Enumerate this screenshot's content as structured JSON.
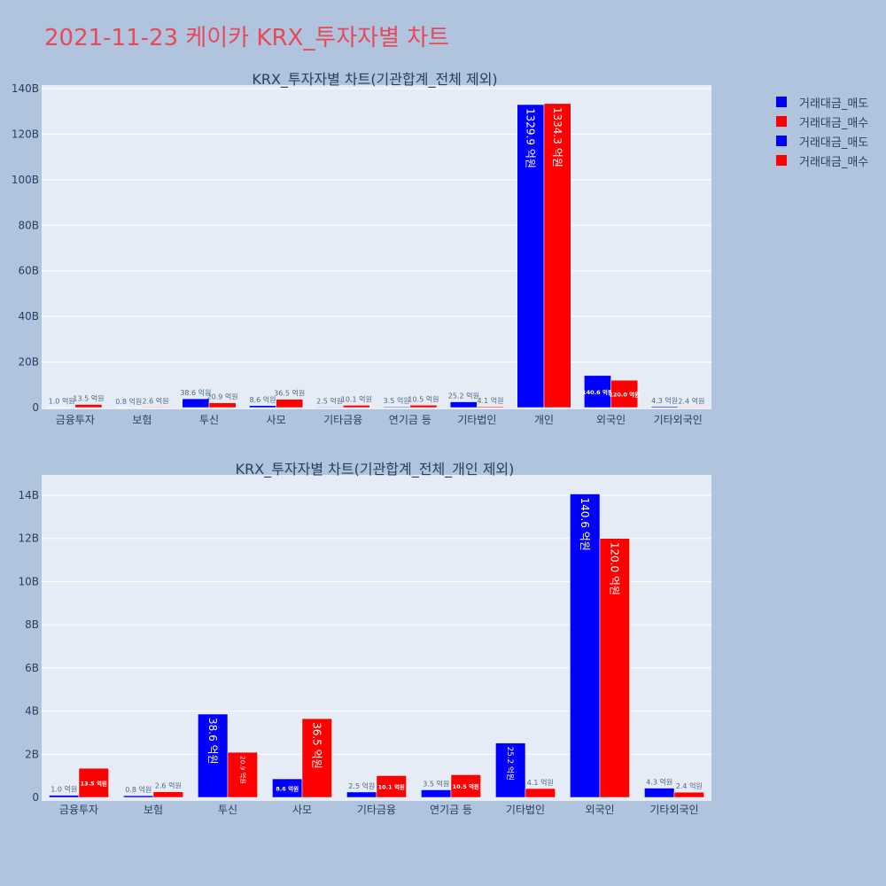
{
  "page": {
    "title": "2021-11-23 케이카 KRX_투자자별 차트"
  },
  "legend": {
    "items": [
      {
        "label": "거래대금_매도",
        "color": "#0000ff"
      },
      {
        "label": "거래대금_매수",
        "color": "#ff0000"
      },
      {
        "label": "거래대금_매도",
        "color": "#0000ff"
      },
      {
        "label": "거래대금_매수",
        "color": "#ff0000"
      }
    ]
  },
  "colors": {
    "sell": "#0000ff",
    "buy": "#ff0000",
    "plot_bg": "#e5ecf6",
    "page_bg": "#b0c4de",
    "grid": "#ffffff",
    "text": "#2a3f5f"
  },
  "chart_data": [
    {
      "type": "bar",
      "title": "KRX_투자자별 차트(기관합계_전체 제외)",
      "categories": [
        "금융투자",
        "보험",
        "투신",
        "사모",
        "기타금융",
        "연기금 등",
        "기타법인",
        "개인",
        "외국인",
        "기타외국인"
      ],
      "ylim": [
        0,
        140
      ],
      "ytick_values": [
        0,
        20,
        40,
        60,
        80,
        100,
        120,
        140
      ],
      "ytick_labels": [
        "0",
        "20B",
        "40B",
        "60B",
        "80B",
        "100B",
        "120B",
        "140B"
      ],
      "series": [
        {
          "name": "거래대금_매도",
          "color": "#0000ff",
          "values": [
            0.1,
            0.08,
            3.86,
            0.86,
            0.25,
            0.35,
            2.52,
            132.99,
            14.06,
            0.43
          ],
          "labels": [
            "1.0 억원",
            "0.8 억원",
            "38.6 억원",
            "8.6 억원",
            "2.5 억원",
            "3.5 억원",
            "25.2 억원",
            "1329.9 억원",
            "140.6 억원",
            "4.3 억원"
          ]
        },
        {
          "name": "거래대금_매수",
          "color": "#ff0000",
          "values": [
            1.35,
            0.26,
            2.09,
            3.65,
            1.01,
            1.05,
            0.41,
            133.43,
            12.0,
            0.24
          ],
          "labels": [
            "13.5 억원",
            "2.6 억원",
            "20.9 억원",
            "36.5 억원",
            "10.1 억원",
            "10.5 억원",
            "4.1 억원",
            "1334.3 억원",
            "120.0 억원",
            "2.4 억원"
          ]
        }
      ]
    },
    {
      "type": "bar",
      "title": "KRX_투자자별 차트(기관합계_전체_개인 제외)",
      "categories": [
        "금융투자",
        "보험",
        "투신",
        "사모",
        "기타금융",
        "연기금 등",
        "기타법인",
        "외국인",
        "기타외국인"
      ],
      "ylim": [
        0,
        15
      ],
      "ytick_values": [
        0,
        2,
        4,
        6,
        8,
        10,
        12,
        14
      ],
      "ytick_labels": [
        "0",
        "2B",
        "4B",
        "6B",
        "8B",
        "10B",
        "12B",
        "14B"
      ],
      "series": [
        {
          "name": "거래대금_매도",
          "color": "#0000ff",
          "values": [
            0.1,
            0.08,
            3.86,
            0.86,
            0.25,
            0.35,
            2.52,
            14.06,
            0.43
          ],
          "labels": [
            "1.0 억원",
            "0.8 억원",
            "38.6 억원",
            "8.6 억원",
            "2.5 억원",
            "3.5 억원",
            "25.2 억원",
            "140.6 억원",
            "4.3 억원"
          ]
        },
        {
          "name": "거래대금_매수",
          "color": "#ff0000",
          "values": [
            1.35,
            0.26,
            2.09,
            3.65,
            1.01,
            1.05,
            0.41,
            12.0,
            0.24
          ],
          "labels": [
            "13.5 억원",
            "2.6 억원",
            "20.9 억원",
            "36.5 억원",
            "10.1 억원",
            "10.5 억원",
            "4.1 억원",
            "120.0 억원",
            "2.4 억원"
          ]
        }
      ]
    }
  ]
}
